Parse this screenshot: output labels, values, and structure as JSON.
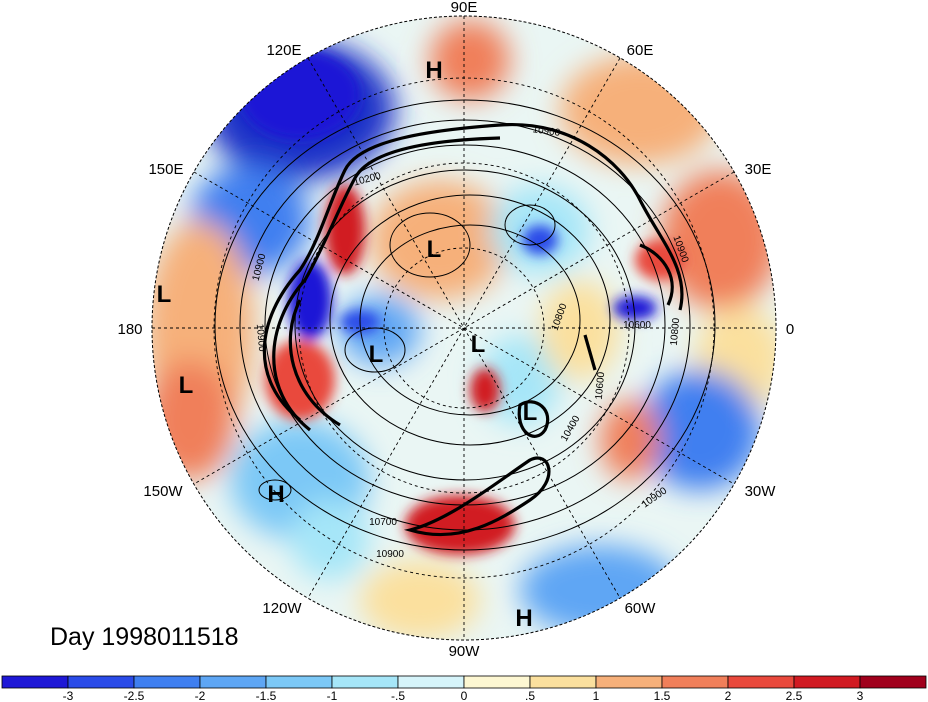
{
  "map": {
    "projection": "north-polar-stereographic",
    "day_label": "Day 1998011518",
    "longitude_labels": [
      "90E",
      "60E",
      "30E",
      "0",
      "30W",
      "60W",
      "90W",
      "120W",
      "150W",
      "180",
      "150E",
      "120E"
    ],
    "contour_labels": [
      "10900",
      "10200",
      "10900",
      "10900",
      "10800",
      "10600",
      "10600",
      "10400",
      "10900",
      "10700",
      "10900",
      "10900",
      "10800"
    ],
    "pressure_centers": [
      "H",
      "L",
      "L",
      "L",
      "L",
      "L",
      "L",
      "H",
      "H"
    ]
  },
  "colorbar": {
    "tick_labels": [
      "-3",
      "-2.5",
      "-2",
      "-1.5",
      "-1",
      "-.5",
      "0",
      ".5",
      "1",
      "1.5",
      "2",
      "2.5",
      "3"
    ],
    "colors": [
      "#1e18d6",
      "#2a4be8",
      "#3f7ff0",
      "#5ea6f4",
      "#7cc8f6",
      "#a6e6f8",
      "#d6f4fa",
      "#fdf7d2",
      "#fbe09e",
      "#f6b07a",
      "#f07f5a",
      "#e9493c",
      "#d11a22",
      "#a0001c"
    ]
  }
}
